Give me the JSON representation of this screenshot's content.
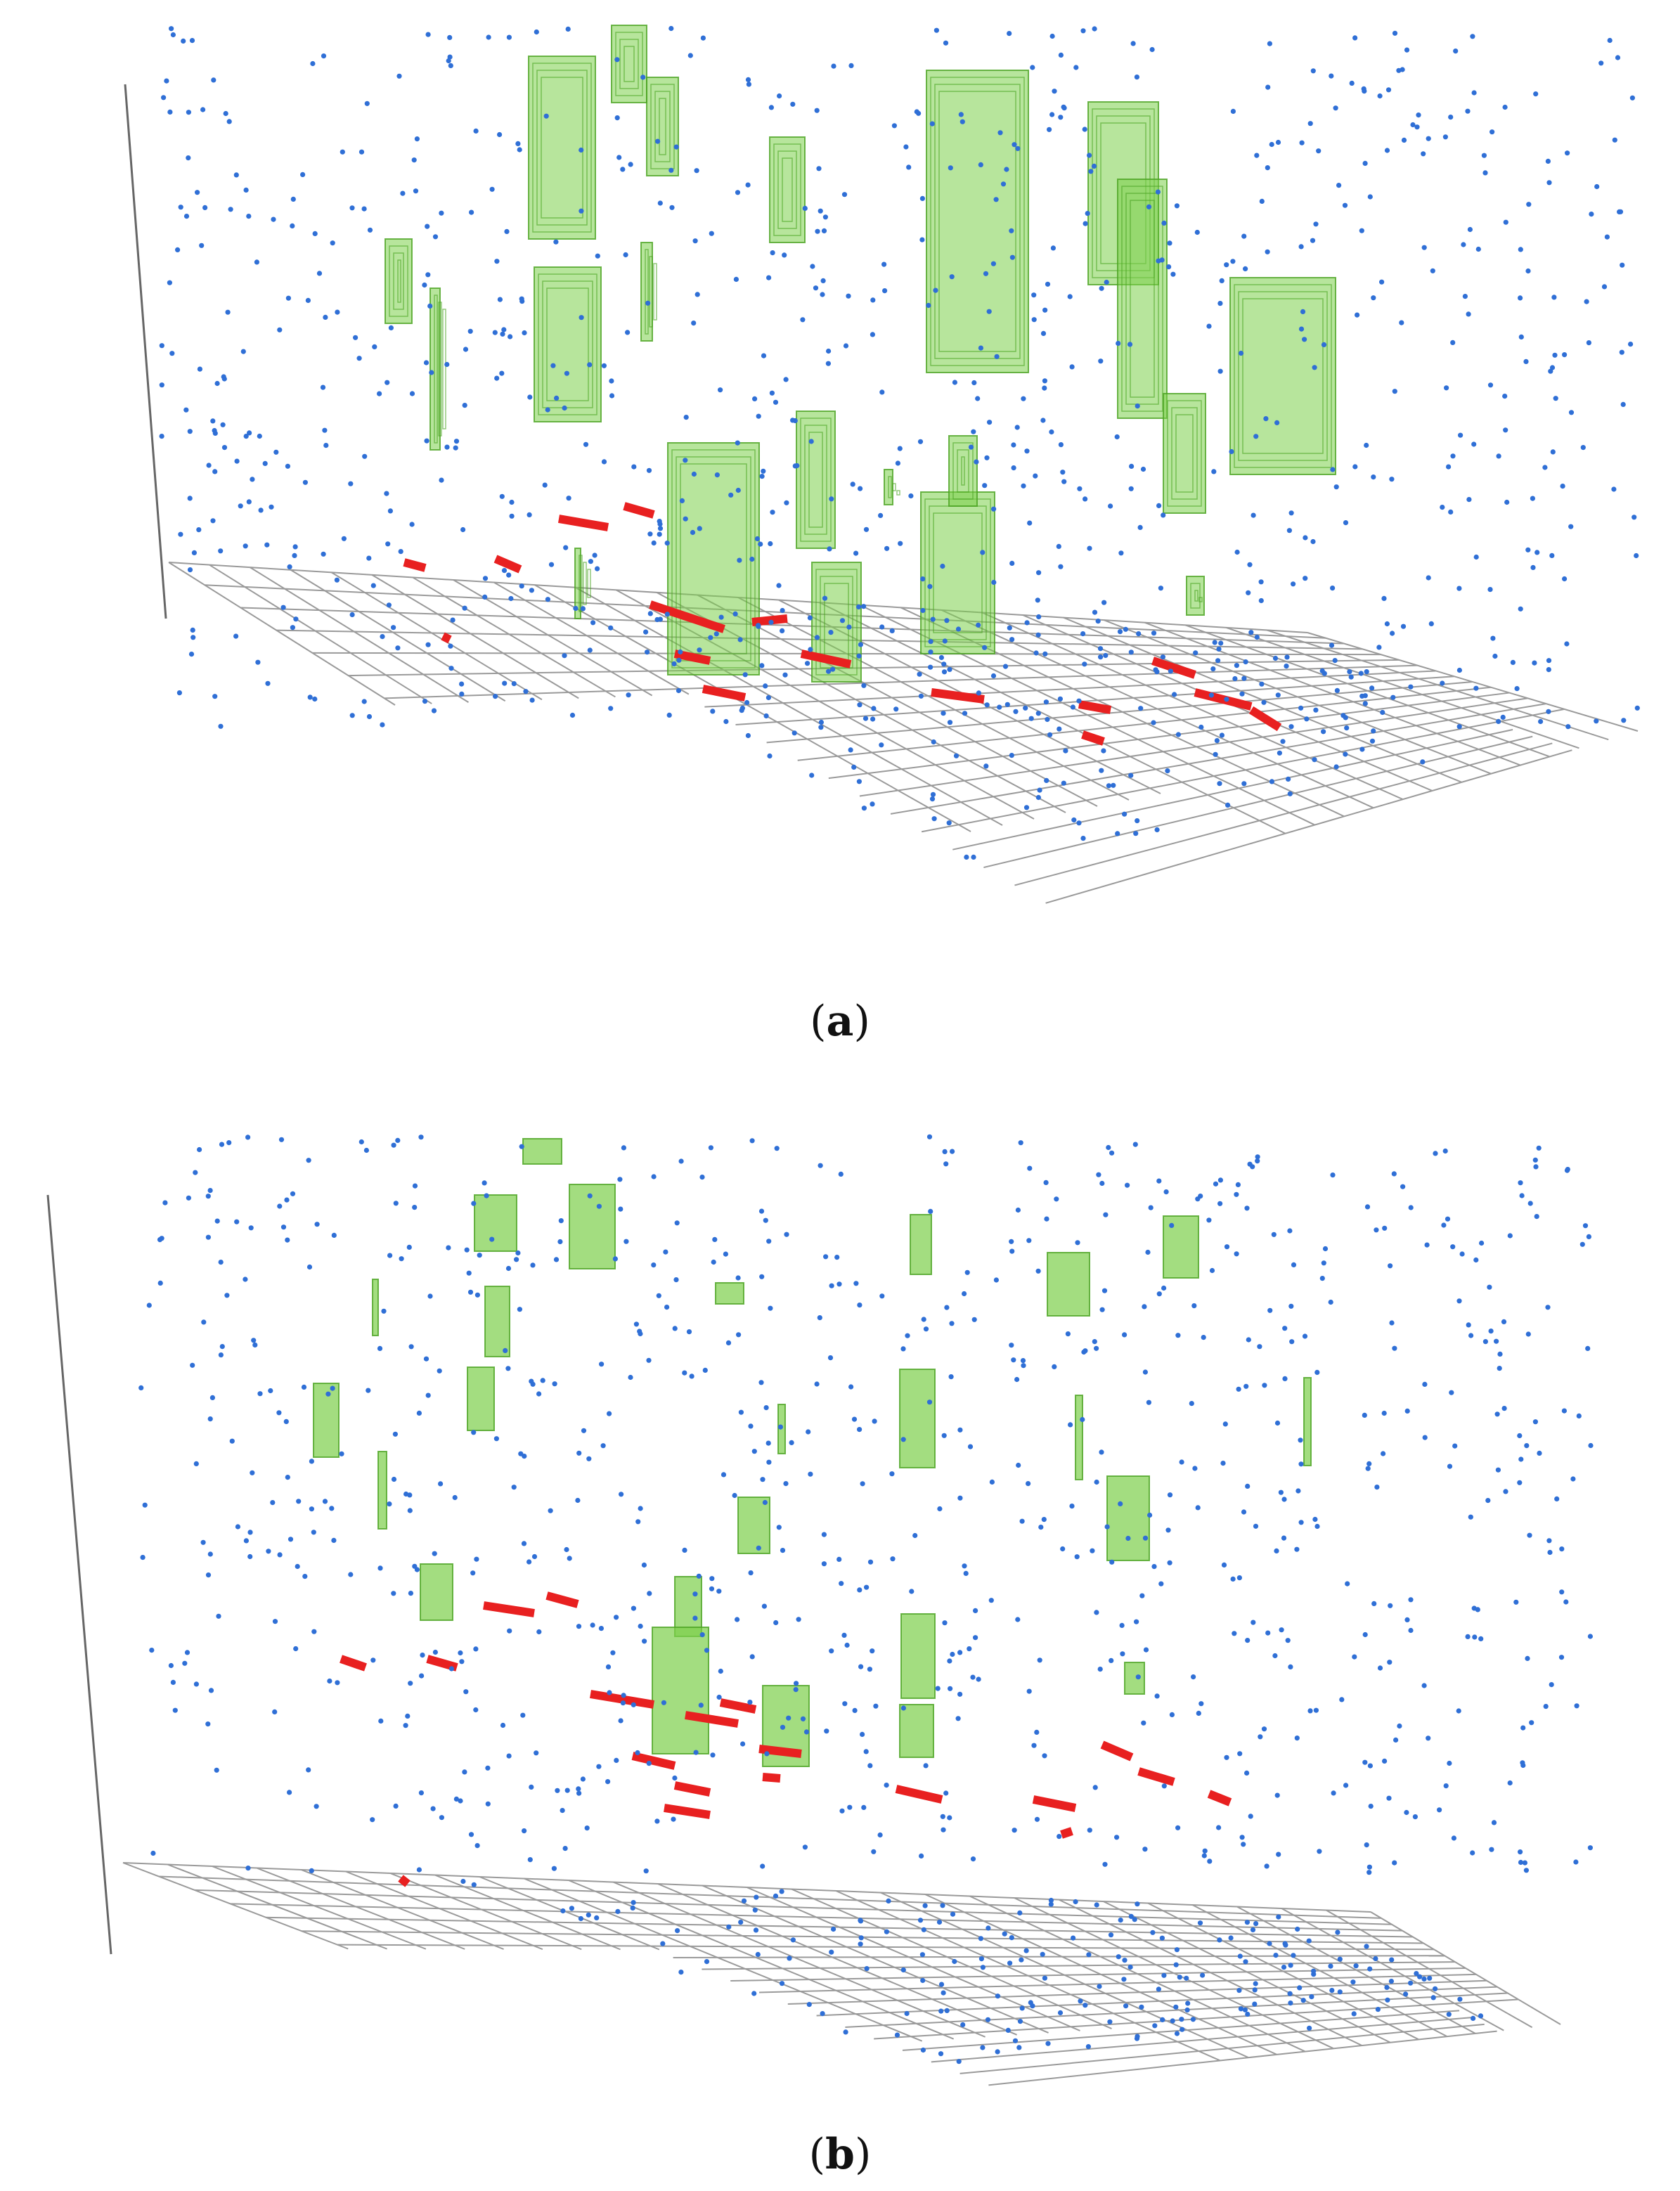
{
  "colors": {
    "grid": "#9a9a9a",
    "axis": "#666666",
    "points": "#2f6fd6",
    "volumes": "#7ccf4a",
    "volumes_edge": "#4aa321",
    "hotspots": "#e82020"
  },
  "icons": {
    "points": "blue-dot-icon",
    "volumes": "green-prism-icon",
    "hotspots": "red-bar-icon"
  },
  "panels": [
    {
      "label_open": "(",
      "label_letter": "a",
      "label_close": ")"
    },
    {
      "label_open": "(",
      "label_letter": "b",
      "label_close": ")"
    }
  ]
}
